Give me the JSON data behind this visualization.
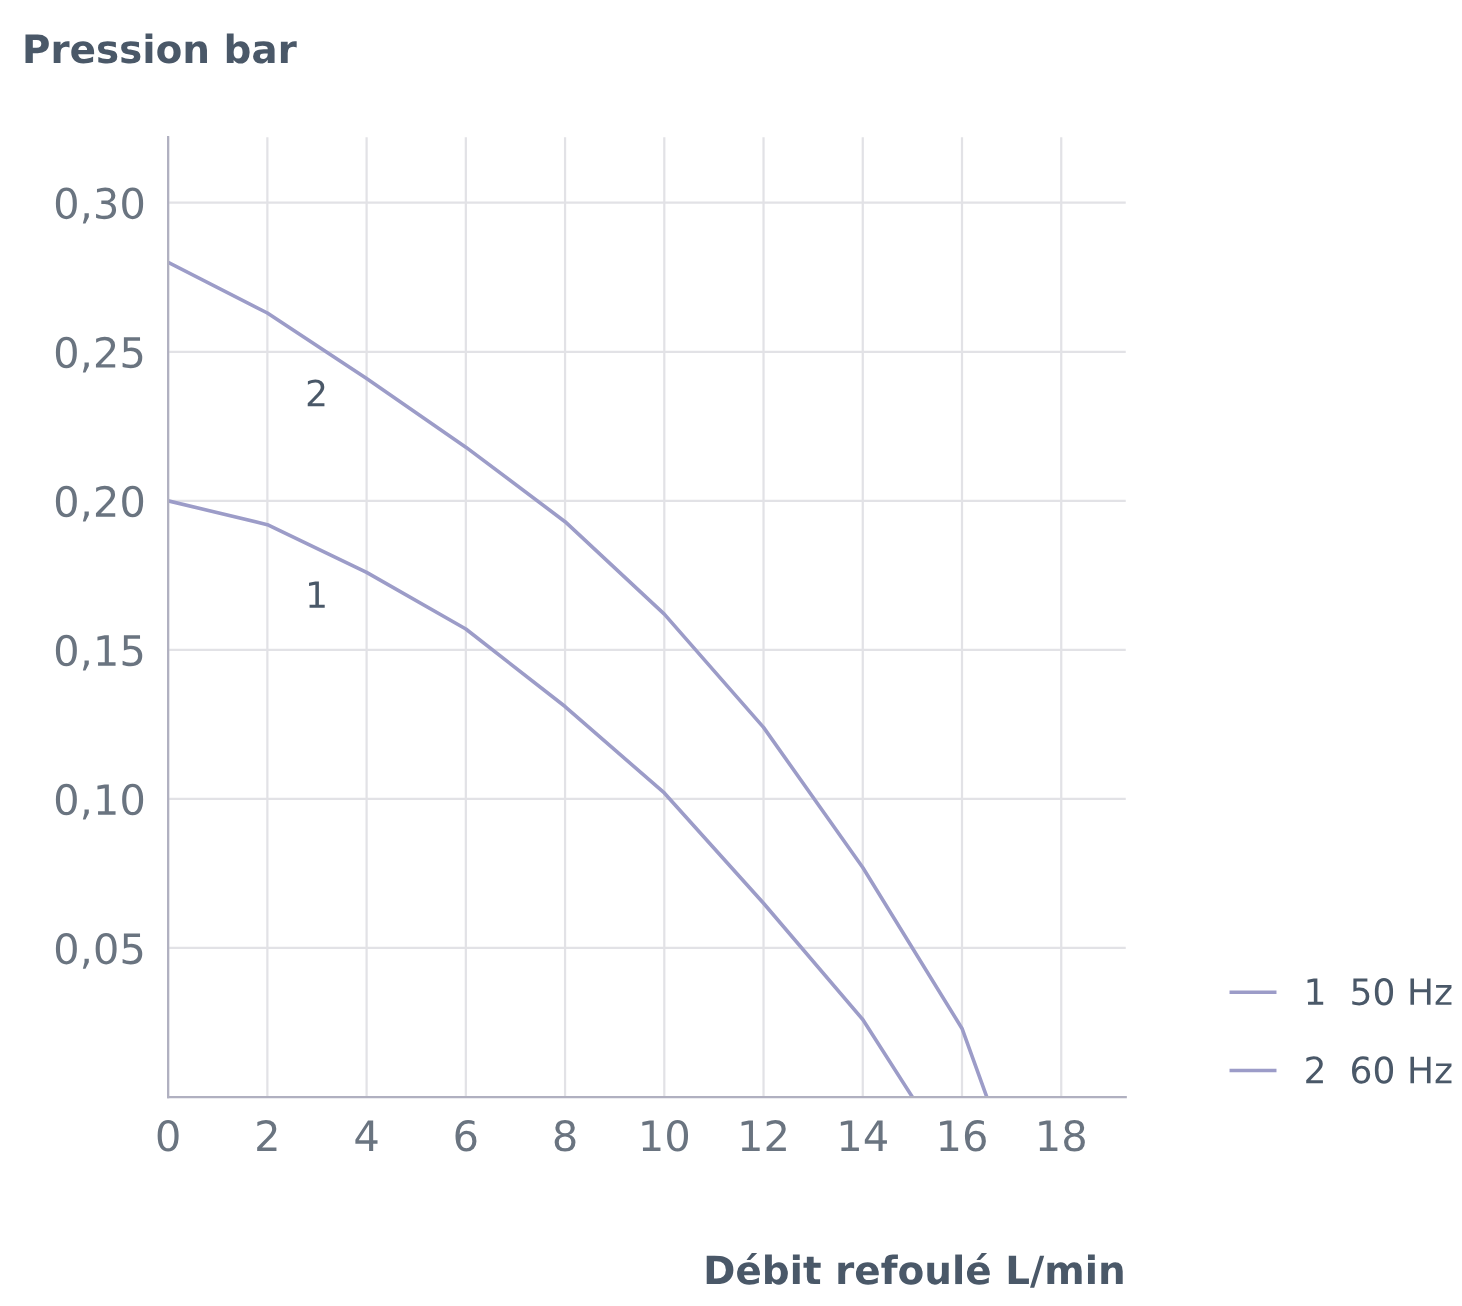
{
  "chart_data": {
    "type": "line",
    "title": "Pression bar",
    "xlabel": "Débit refoulé L/min",
    "series": [
      {
        "name": "1  50 Hz",
        "color": "#9c9cc8",
        "x": [
          0,
          2,
          4,
          6,
          8,
          10,
          12,
          14,
          15
        ],
        "values": [
          0.2,
          0.192,
          0.176,
          0.157,
          0.131,
          0.102,
          0.065,
          0.026,
          0
        ]
      },
      {
        "name": "2  60 Hz",
        "color": "#9c9cc8",
        "x": [
          0,
          2,
          4,
          6,
          8,
          10,
          12,
          14,
          16,
          16.5
        ],
        "values": [
          0.28,
          0.263,
          0.241,
          0.218,
          0.193,
          0.162,
          0.124,
          0.077,
          0.023,
          0
        ]
      }
    ],
    "annotations": [
      "1",
      "2"
    ],
    "xlim": [
      0,
      19.3
    ],
    "ylim": [
      0,
      0.322
    ],
    "xticks": [
      0,
      2,
      4,
      6,
      8,
      10,
      12,
      14,
      16,
      18
    ],
    "yticks": [
      {
        "value": 0.05,
        "label": "0,05"
      },
      {
        "value": 0.1,
        "label": "0,10"
      },
      {
        "value": 0.15,
        "label": "0,15"
      },
      {
        "value": 0.2,
        "label": "0,20"
      },
      {
        "value": 0.25,
        "label": "0,25"
      },
      {
        "value": 0.3,
        "label": "0,30"
      }
    ],
    "grid": true,
    "legend": "bottom right",
    "marker": "none",
    "line_style": "solid"
  }
}
